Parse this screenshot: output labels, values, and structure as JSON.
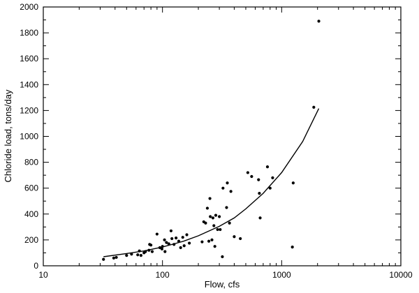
{
  "chart_data": {
    "type": "scatter",
    "title": "",
    "xlabel": "Flow, cfs",
    "ylabel": "Chloride load, tons/day",
    "xscale": "log",
    "xlim": [
      10,
      10000
    ],
    "ylim": [
      0,
      2000
    ],
    "xticks": [
      "10",
      "100",
      "1000",
      "10000"
    ],
    "yticks": [
      "0",
      "200",
      "400",
      "600",
      "800",
      "1000",
      "1200",
      "1400",
      "1600",
      "1800",
      "2000"
    ],
    "grid": false,
    "legend": "none",
    "series": [
      {
        "kind": "points",
        "marker_color": "#000000",
        "x": [
          32,
          39,
          41,
          50,
          55,
          62,
          64,
          66,
          70,
          72,
          77,
          78,
          80,
          82,
          90,
          95,
          99,
          100,
          104,
          105,
          108,
          113,
          118,
          120,
          125,
          130,
          137,
          142,
          148,
          152,
          160,
          168,
          215,
          222,
          230,
          238,
          245,
          250,
          252,
          260,
          265,
          270,
          275,
          280,
          290,
          300,
          305,
          318,
          322,
          345,
          350,
          365,
          375,
          400,
          450,
          520,
          560,
          640,
          650,
          660,
          760,
          800,
          840,
          1230,
          1250,
          1860,
          2050
        ],
        "y": [
          50,
          60,
          65,
          80,
          90,
          85,
          115,
          80,
          100,
          110,
          120,
          165,
          160,
          110,
          245,
          140,
          130,
          150,
          200,
          110,
          180,
          170,
          270,
          210,
          165,
          215,
          190,
          140,
          220,
          155,
          240,
          175,
          185,
          340,
          330,
          445,
          190,
          520,
          380,
          200,
          370,
          310,
          150,
          390,
          280,
          380,
          280,
          70,
          600,
          450,
          640,
          330,
          575,
          225,
          210,
          720,
          690,
          665,
          560,
          370,
          765,
          600,
          680,
          145,
          640,
          1225,
          1890
        ]
      },
      {
        "kind": "fitted-curve",
        "line_color": "#000000",
        "x": [
          32,
          50,
          70,
          100,
          150,
          200,
          300,
          400,
          500,
          700,
          1000,
          1500,
          2050
        ],
        "y": [
          70,
          95,
          115,
          145,
          190,
          232,
          305,
          370,
          440,
          560,
          720,
          960,
          1215
        ]
      }
    ]
  }
}
